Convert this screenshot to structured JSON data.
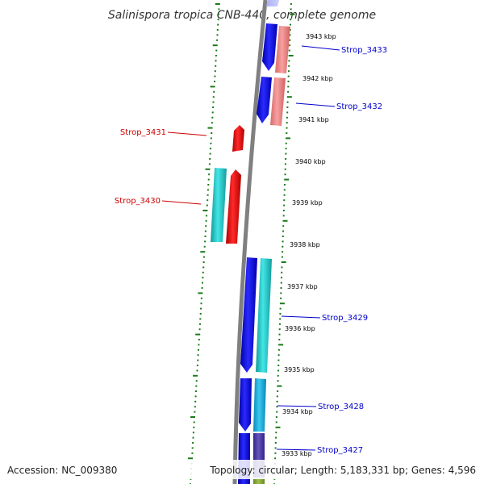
{
  "title": "Salinispora tropica CNB-440, complete genome",
  "accession": "Accession: NC_009380",
  "summary": "Topology: circular; Length: 5,183,331 bp; Genes: 4,596",
  "colors": {
    "forward_label": "#0000cc",
    "reverse_label": "#cc0000",
    "backbone": "#808080",
    "tick": "#1a7a1a",
    "blue": "#0000ee",
    "red": "#ee0000",
    "pink": "#f08080",
    "cyan": "#22cccc",
    "sky": "#22aadd",
    "violet": "#5544aa",
    "olive": "#88aa33"
  },
  "ticks": [
    {
      "label": "3943 kbp"
    },
    {
      "label": "3942 kbp"
    },
    {
      "label": "3941 kbp"
    },
    {
      "label": "3940 kbp"
    },
    {
      "label": "3939 kbp"
    },
    {
      "label": "3938 kbp"
    },
    {
      "label": "3937 kbp"
    },
    {
      "label": "3936 kbp"
    },
    {
      "label": "3935 kbp"
    },
    {
      "label": "3934 kbp"
    },
    {
      "label": "3933 kbp"
    }
  ],
  "genes": [
    {
      "name": "Strop_3433",
      "strand": "forward"
    },
    {
      "name": "Strop_3432",
      "strand": "forward"
    },
    {
      "name": "Strop_3431",
      "strand": "reverse"
    },
    {
      "name": "Strop_3430",
      "strand": "reverse"
    },
    {
      "name": "Strop_3429",
      "strand": "forward"
    },
    {
      "name": "Strop_3428",
      "strand": "forward"
    },
    {
      "name": "Strop_3427",
      "strand": "forward"
    }
  ]
}
